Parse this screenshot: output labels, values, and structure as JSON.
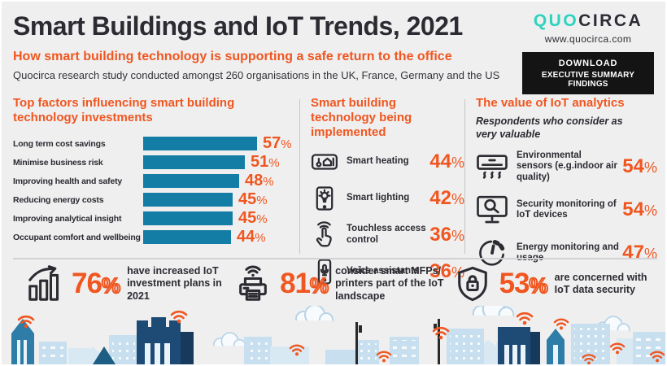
{
  "header": {
    "title": "Smart Buildings and IoT Trends, 2021",
    "subtitle": "How smart building technology is supporting a safe return to the office",
    "description": "Quocirca research study conducted amongst 260 organisations in the UK, France, Germany and the US",
    "logo_part1": "QUO",
    "logo_part2": "CIRCA",
    "website": "www.quocirca.com",
    "download_line1": "DOWNLOAD",
    "download_line2": "EXECUTIVE SUMMARY FINDINGS"
  },
  "chart_data": {
    "type": "bar",
    "orientation": "horizontal",
    "title": "Top factors influencing smart building technology investments",
    "categories": [
      "Long term cost savings",
      "Minimise business risk",
      "Improving health and safety",
      "Reducing energy costs",
      "Improving analytical insight",
      "Occupant comfort and wellbeing"
    ],
    "values": [
      57,
      51,
      48,
      45,
      45,
      44
    ],
    "unit": "%",
    "xlim": [
      0,
      60
    ],
    "grid": false,
    "bar_color": "#137da6",
    "value_label_color": "#f0561f"
  },
  "sections": {
    "implemented": {
      "title": "Smart building technology being implemented",
      "items": [
        {
          "icon": "smart-heating-icon",
          "label": "Smart heating",
          "value": 44
        },
        {
          "icon": "smart-lighting-icon",
          "label": "Smart lighting",
          "value": 42
        },
        {
          "icon": "touchless-access-icon",
          "label": "Touchless access control",
          "value": 36
        },
        {
          "icon": "voice-assistant-icon",
          "label": "Voice assistants",
          "value": 36
        }
      ]
    },
    "analytics": {
      "title": "The value of IoT analytics",
      "subtitle": "Respondents who consider as very valuable",
      "items": [
        {
          "icon": "environmental-sensors-icon",
          "label": "Environmental sensors (e.g.indoor air quality)",
          "value": 54
        },
        {
          "icon": "security-monitoring-icon",
          "label": "Security monitoring of IoT devices",
          "value": 54
        },
        {
          "icon": "energy-monitoring-icon",
          "label": "Energy monitoring and usage",
          "value": 47
        }
      ]
    }
  },
  "bottom_stats": [
    {
      "icon": "growth-chart-icon",
      "value": 76,
      "label": "have increased IoT investment plans in 2021"
    },
    {
      "icon": "smart-printer-icon",
      "value": 81,
      "label": "consider smart MFPs/ printers part of the IoT landscape"
    },
    {
      "icon": "shield-lock-icon",
      "value": 53,
      "label": "are concerned with IoT data security"
    }
  ],
  "colors": {
    "accent_orange": "#f0561f",
    "bar_teal": "#137da6",
    "logo_teal": "#2ed3bd",
    "text_dark": "#2b2b31",
    "background": "#efeff0",
    "button_black": "#141414",
    "skyline_light_blue": "#c7dfee",
    "skyline_medium_blue": "#2e7ca8",
    "skyline_dark_blue": "#1d4b76"
  }
}
